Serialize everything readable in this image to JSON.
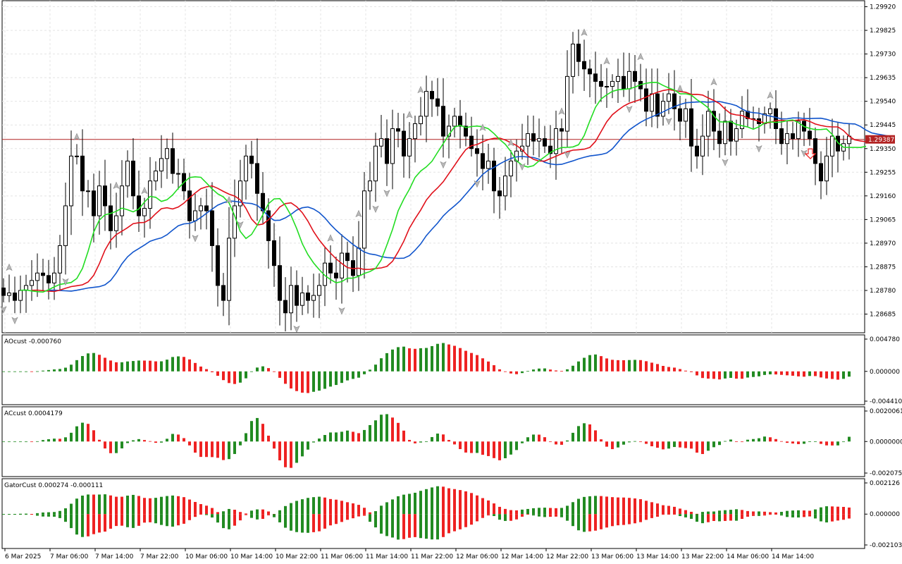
{
  "chart_data": [
    {
      "type": "candlestick",
      "pane": "main",
      "price_axis_labels": [
        "1.29920",
        "1.29825",
        "1.29730",
        "1.29635",
        "1.29540",
        "1.29445",
        "1.29350",
        "1.29255",
        "1.29160",
        "1.29065",
        "1.28970",
        "1.28875",
        "1.28780",
        "1.28685"
      ],
      "ylim": [
        1.2861,
        1.2993
      ],
      "current_price": 1.29387,
      "current_price_label": "1.29387",
      "time_labels": [
        "6 Mar 2025",
        "7 Mar 06:00",
        "7 Mar 14:00",
        "7 Mar 22:00",
        "10 Mar 06:00",
        "10 Mar 14:00",
        "10 Mar 22:00",
        "11 Mar 06:00",
        "11 Mar 14:00",
        "11 Mar 22:00",
        "12 Mar 06:00",
        "12 Mar 14:00",
        "12 Mar 22:00",
        "13 Mar 06:00",
        "13 Mar 14:00",
        "13 Mar 22:00",
        "14 Mar 06:00",
        "14 Mar 14:00"
      ],
      "bars_per_time_label": 8,
      "close": [
        1.2876,
        1.2877,
        1.2874,
        1.2878,
        1.288,
        1.2882,
        1.2885,
        1.2884,
        1.2881,
        1.2885,
        1.2896,
        1.2912,
        1.2932,
        1.2932,
        1.2918,
        1.2918,
        1.2908,
        1.292,
        1.2912,
        1.2902,
        1.2908,
        1.292,
        1.293,
        1.2916,
        1.2908,
        1.2911,
        1.2922,
        1.2926,
        1.2931,
        1.2935,
        1.2925,
        1.2925,
        1.2918,
        1.2906,
        1.291,
        1.2912,
        1.291,
        1.2896,
        1.288,
        1.2874,
        1.2899,
        1.2912,
        1.2922,
        1.2932,
        1.2929,
        1.2917,
        1.291,
        1.2898,
        1.2888,
        1.2874,
        1.2869,
        1.288,
        1.2872,
        1.2877,
        1.2874,
        1.2876,
        1.288,
        1.2889,
        1.2885,
        1.2883,
        1.2893,
        1.289,
        1.2884,
        1.2895,
        1.2918,
        1.2922,
        1.2936,
        1.2939,
        1.2929,
        1.2943,
        1.2942,
        1.2932,
        1.2939,
        1.2945,
        1.2948,
        1.2958,
        1.2955,
        1.2952,
        1.294,
        1.2944,
        1.2948,
        1.2944,
        1.294,
        1.2935,
        1.2933,
        1.2927,
        1.293,
        1.2918,
        1.2916,
        1.2924,
        1.293,
        1.2934,
        1.2936,
        1.2941,
        1.2938,
        1.2939,
        1.2936,
        1.2933,
        1.2943,
        1.2942,
        1.2964,
        1.2977,
        1.297,
        1.2967,
        1.2965,
        1.2962,
        1.296,
        1.296,
        1.2962,
        1.2964,
        1.2959,
        1.2966,
        1.2962,
        1.2959,
        1.295,
        1.2957,
        1.2948,
        1.2954,
        1.2957,
        1.2951,
        1.2946,
        1.2951,
        1.2936,
        1.2932,
        1.294,
        1.295,
        1.2942,
        1.2937,
        1.2946,
        1.2938,
        1.2943,
        1.295,
        1.2947,
        1.2947,
        1.2945,
        1.2949,
        1.2951,
        1.2943,
        1.2937,
        1.2941,
        1.2939,
        1.2946,
        1.2942,
        1.2939,
        1.2929,
        1.2922,
        1.2932,
        1.294,
        1.2934,
        1.2937,
        1.294
      ],
      "down_fractals_at_bars": [
        0,
        2,
        11,
        34,
        42,
        52,
        60,
        66,
        68,
        78,
        84,
        92,
        100,
        111,
        118,
        128,
        134,
        142
      ],
      "up_fractals_at_bars": [
        1,
        13,
        20,
        25,
        40,
        58,
        63,
        72,
        74,
        85,
        90,
        99,
        103,
        107,
        113,
        120,
        126,
        136
      ],
      "sell_arrow_bar": 142,
      "series_colors": {
        "jaw": "#1155cc",
        "teeth": "#e0101a",
        "lips": "#22dd22",
        "bull_body": "#ffffff",
        "bear_body": "#000000",
        "price_line": "#b22222"
      }
    },
    {
      "type": "histogram",
      "pane": "ao",
      "label": "AOcust -0.000760",
      "axis_labels": [
        "0.004780",
        "0.000000",
        "-0.004410"
      ],
      "ylim": [
        -0.00441,
        0.00478
      ],
      "colors": {
        "up": "#228b22",
        "down": "#ee2222"
      }
    },
    {
      "type": "histogram",
      "pane": "ac",
      "label": "ACcust 0.0004179",
      "axis_labels": [
        "0.0020061",
        "0.0000000",
        "-0.0020754"
      ],
      "ylim": [
        -0.0020754,
        0.0020061
      ],
      "colors": {
        "up": "#228b22",
        "down": "#ee2222"
      }
    },
    {
      "type": "histogram",
      "pane": "gator",
      "label": "GatorCust 0.000274 -0.000111",
      "axis_labels": [
        "0.002126",
        "0.000000",
        "-0.002103"
      ],
      "ylim": [
        -0.002103,
        0.002126
      ],
      "colors": {
        "up": "#228b22",
        "down": "#ee2222"
      }
    }
  ]
}
